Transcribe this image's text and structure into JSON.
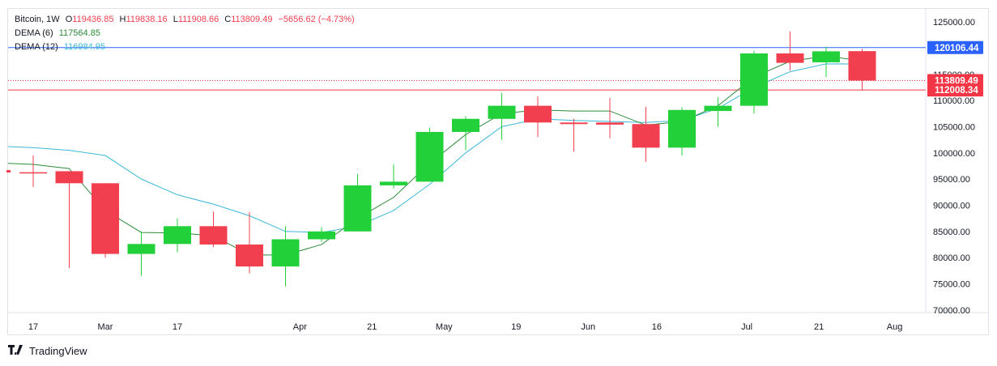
{
  "legend": {
    "symbol": "Bitcoin",
    "interval": "1W",
    "o_label": "O",
    "o_value": "119436.85",
    "h_label": "H",
    "h_value": "119838.16",
    "l_label": "L",
    "l_value": "111908.66",
    "c_label": "C",
    "c_value": "113809.49",
    "change": "−5656.62 (−4.73%)",
    "dema6_label": "DEMA (6)",
    "dema6_value": "117564.85",
    "dema12_label": "DEMA (12)",
    "dema12_value": "116984.95"
  },
  "brand": "TradingView",
  "colors": {
    "up": "#22d03a",
    "down": "#f23f4f",
    "dema6": "#2e8b3a",
    "dema12": "#3bb8d8",
    "hline_blue": "#2962ff",
    "hline_red": "#f23645",
    "grid_text": "#131722"
  },
  "chart_data": {
    "type": "candlestick",
    "y_ticks": [
      "125000.00",
      "120000.00",
      "115000.00",
      "110000.00",
      "105000.00",
      "100000.00",
      "95000.00",
      "90000.00",
      "85000.00",
      "80000.00",
      "75000.00",
      "70000.00"
    ],
    "ylim": [
      69500,
      127500
    ],
    "x_labels": [
      {
        "week": 0,
        "label": "17"
      },
      {
        "week": 2,
        "label": "Mar"
      },
      {
        "week": 4,
        "label": "17"
      },
      {
        "week": 7.4,
        "label": "Apr"
      },
      {
        "week": 9.4,
        "label": "21"
      },
      {
        "week": 11.4,
        "label": "May"
      },
      {
        "week": 13.4,
        "label": "19"
      },
      {
        "week": 15.4,
        "label": "Jun"
      },
      {
        "week": 17.3,
        "label": "16"
      },
      {
        "week": 19.8,
        "label": "Jul"
      },
      {
        "week": 21.8,
        "label": "21"
      },
      {
        "week": 23.9,
        "label": "Aug"
      }
    ],
    "candles": [
      {
        "o": 96300,
        "h": 99500,
        "l": 93500,
        "c": 96200
      },
      {
        "o": 96500,
        "h": 96500,
        "l": 78000,
        "c": 94200
      },
      {
        "o": 94200,
        "h": 94200,
        "l": 80000,
        "c": 80700
      },
      {
        "o": 80700,
        "h": 85000,
        "l": 76500,
        "c": 82600
      },
      {
        "o": 82600,
        "h": 87500,
        "l": 81000,
        "c": 86000
      },
      {
        "o": 86000,
        "h": 88800,
        "l": 82000,
        "c": 82500
      },
      {
        "o": 82500,
        "h": 88700,
        "l": 77000,
        "c": 78300
      },
      {
        "o": 78300,
        "h": 86000,
        "l": 74500,
        "c": 83500
      },
      {
        "o": 83500,
        "h": 85800,
        "l": 83000,
        "c": 85000
      },
      {
        "o": 85000,
        "h": 96000,
        "l": 85000,
        "c": 93800
      },
      {
        "o": 93800,
        "h": 97800,
        "l": 93200,
        "c": 94500
      },
      {
        "o": 94500,
        "h": 104800,
        "l": 94500,
        "c": 104000
      },
      {
        "o": 104000,
        "h": 107000,
        "l": 100500,
        "c": 106500
      },
      {
        "o": 106500,
        "h": 111500,
        "l": 102500,
        "c": 109000
      },
      {
        "o": 109000,
        "h": 110800,
        "l": 103000,
        "c": 105800
      },
      {
        "o": 105800,
        "h": 106500,
        "l": 100200,
        "c": 105500
      },
      {
        "o": 105800,
        "h": 110500,
        "l": 102800,
        "c": 105400
      },
      {
        "o": 105500,
        "h": 108800,
        "l": 98300,
        "c": 101000
      },
      {
        "o": 101000,
        "h": 108700,
        "l": 99500,
        "c": 108200
      },
      {
        "o": 108000,
        "h": 110600,
        "l": 105000,
        "c": 109000
      },
      {
        "o": 109000,
        "h": 119500,
        "l": 107500,
        "c": 119000
      },
      {
        "o": 119000,
        "h": 123200,
        "l": 115700,
        "c": 117200
      },
      {
        "o": 117300,
        "h": 120300,
        "l": 114500,
        "c": 119400
      },
      {
        "o": 119436.85,
        "h": 119838.16,
        "l": 111908.66,
        "c": 113809.49
      }
    ],
    "dema6": [
      97800,
      97000,
      89000,
      84800,
      84700,
      84200,
      80500,
      80500,
      82500,
      87500,
      91500,
      98000,
      103500,
      107500,
      108200,
      108000,
      108000,
      105300,
      106000,
      109000,
      114500,
      117500,
      118500,
      117564.85
    ],
    "dema12": [
      101000,
      100500,
      99500,
      95000,
      92000,
      90200,
      88000,
      85000,
      84800,
      86000,
      89000,
      94000,
      100000,
      105000,
      106500,
      106200,
      106000,
      105800,
      106200,
      108500,
      112500,
      115500,
      117000,
      116984.95
    ],
    "dema_extra_start": {
      "dema6": 98000,
      "dema12": 101200
    },
    "horizontal_lines": [
      {
        "value": 120106.44,
        "label": "120106.44",
        "color": "#2962ff",
        "style": "solid"
      },
      {
        "value": 113809.49,
        "label": "113809.49",
        "color": "#f23645",
        "style": "dotted"
      },
      {
        "value": 112008.34,
        "label": "112008.34",
        "color": "#f23645",
        "style": "solid"
      }
    ]
  }
}
